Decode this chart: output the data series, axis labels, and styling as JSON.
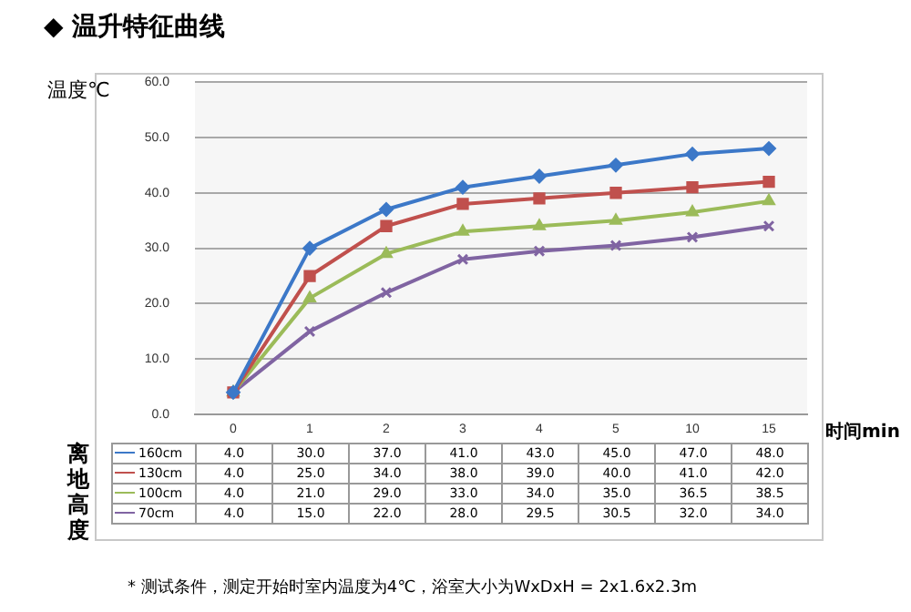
{
  "chart_data": {
    "type": "line",
    "title": "◆ 温升特征曲线",
    "ylabel": "温度℃",
    "xlabel": "时间min",
    "legend_title": "离地高度",
    "annotations": [
      "* 测试条件，测定开始时室内温度为4℃，浴室大小为WxDxH = 2x1.6x2.3m"
    ],
    "categories": [
      "0",
      "1",
      "2",
      "3",
      "4",
      "5",
      "10",
      "15"
    ],
    "ylim": [
      0,
      60
    ],
    "yticks": [
      {
        "value": 0,
        "label": "0.0"
      },
      {
        "value": 10,
        "label": "10.0"
      },
      {
        "value": 20,
        "label": "20.0"
      },
      {
        "value": 30,
        "label": "30.0"
      },
      {
        "value": 40,
        "label": "40.0"
      },
      {
        "value": 50,
        "label": "50.0"
      },
      {
        "value": 60,
        "label": "60.0"
      }
    ],
    "grid": "y",
    "legend": "bottom left",
    "series": [
      {
        "name": "160cm",
        "color": "#3c78c8",
        "marker": "diamond",
        "values": [
          4,
          30,
          37,
          41,
          43,
          45,
          47,
          48
        ],
        "value_labels": [
          "4.0",
          "30.0",
          "37.0",
          "41.0",
          "43.0",
          "45.0",
          "47.0",
          "48.0"
        ]
      },
      {
        "name": "130cm",
        "color": "#c0504d",
        "marker": "square",
        "values": [
          4,
          25,
          34,
          38,
          39,
          40,
          41,
          42
        ],
        "value_labels": [
          "4.0",
          "25.0",
          "34.0",
          "38.0",
          "39.0",
          "40.0",
          "41.0",
          "42.0"
        ]
      },
      {
        "name": "100cm",
        "color": "#9bbb59",
        "marker": "triangle",
        "values": [
          4,
          21,
          29,
          33,
          34,
          35,
          36.5,
          38.5
        ],
        "value_labels": [
          "4.0",
          "21.0",
          "29.0",
          "33.0",
          "34.0",
          "35.0",
          "36.5",
          "38.5"
        ]
      },
      {
        "name": "70cm",
        "color": "#8064a2",
        "marker": "cross",
        "values": [
          4,
          15,
          22,
          28,
          29.5,
          30.5,
          32,
          34
        ],
        "value_labels": [
          "4.0",
          "15.0",
          "22.0",
          "28.0",
          "29.5",
          "30.5",
          "32.0",
          "34.0"
        ]
      }
    ]
  }
}
